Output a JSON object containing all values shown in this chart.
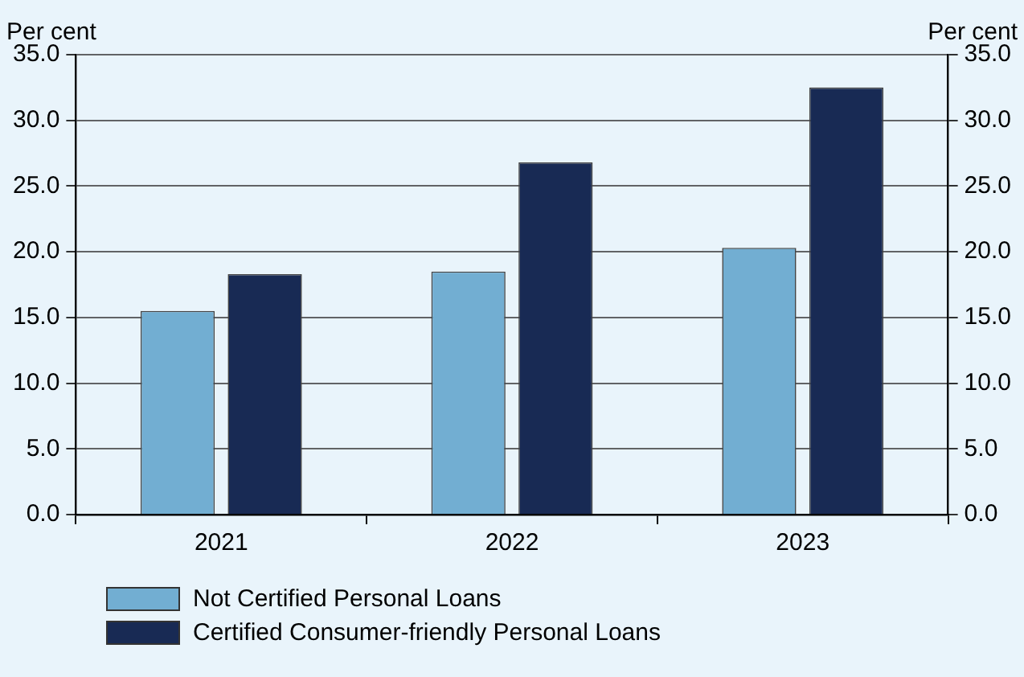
{
  "chart_data": {
    "type": "bar",
    "ylabel": "Per cent",
    "y2label": "Per cent",
    "categories": [
      "2021",
      "2022",
      "2023"
    ],
    "series": [
      {
        "name": "Not Certified Personal Loans",
        "color": "#72aed2",
        "values": [
          15.5,
          18.5,
          20.3
        ]
      },
      {
        "name": "Certified Consumer-friendly Personal Loans",
        "color": "#182a54",
        "values": [
          18.3,
          26.8,
          32.5
        ]
      }
    ],
    "ylim": [
      0,
      35
    ],
    "yticks": [
      {
        "value": 0,
        "label": "0.0"
      },
      {
        "value": 5,
        "label": "5.0"
      },
      {
        "value": 10,
        "label": "10.0"
      },
      {
        "value": 15,
        "label": "15.0"
      },
      {
        "value": 20,
        "label": "20.0"
      },
      {
        "value": 25,
        "label": "25.0"
      },
      {
        "value": 30,
        "label": "30.0"
      },
      {
        "value": 35,
        "label": "35.0"
      }
    ],
    "y2lim": [
      0,
      35
    ],
    "y2ticks": [
      {
        "value": 0,
        "label": "0.0"
      },
      {
        "value": 5,
        "label": "5.0"
      },
      {
        "value": 10,
        "label": "10.0"
      },
      {
        "value": 15,
        "label": "15.0"
      },
      {
        "value": 20,
        "label": "20.0"
      },
      {
        "value": 25,
        "label": "25.0"
      },
      {
        "value": 30,
        "label": "30.0"
      },
      {
        "value": 35,
        "label": "35.0"
      }
    ],
    "grid": "y",
    "legend": "bottom left"
  }
}
